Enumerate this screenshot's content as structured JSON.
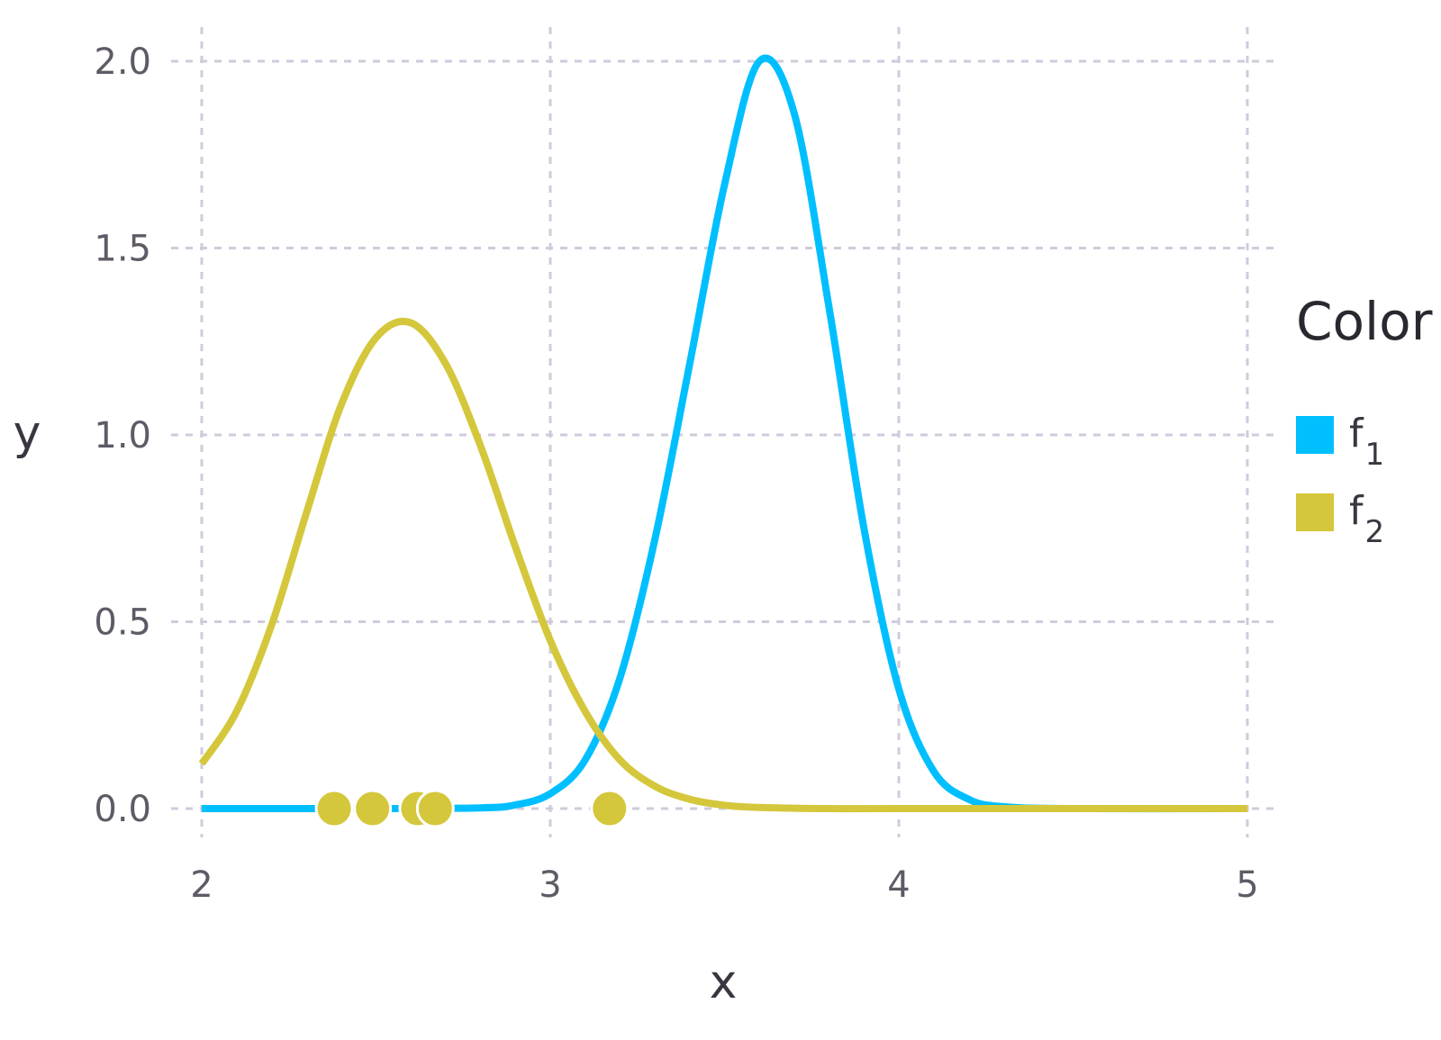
{
  "chart_data": {
    "type": "line",
    "xlabel": "x",
    "ylabel": "y",
    "xlim": [
      2,
      5
    ],
    "ylim": [
      0,
      2
    ],
    "xticks": [
      "2",
      "3",
      "4",
      "5"
    ],
    "yticks": [
      "0.0",
      "0.5",
      "1.0",
      "1.5",
      "2.0"
    ],
    "grid": true,
    "legend": {
      "title": "Color",
      "placement": "right",
      "entries": [
        {
          "base": "f",
          "sub": "1",
          "color": "#00bfff"
        },
        {
          "base": "f",
          "sub": "2",
          "color": "#d4c73b"
        }
      ]
    },
    "series": [
      {
        "type": "line",
        "color": "#00bfff",
        "points": [
          [
            2.0,
            0.0
          ],
          [
            2.5,
            0.0
          ],
          [
            2.8,
            0.002
          ],
          [
            2.9,
            0.01
          ],
          [
            3.0,
            0.04
          ],
          [
            3.1,
            0.13
          ],
          [
            3.2,
            0.35
          ],
          [
            3.3,
            0.72
          ],
          [
            3.4,
            1.19
          ],
          [
            3.5,
            1.67
          ],
          [
            3.6,
            2.0
          ],
          [
            3.7,
            1.86
          ],
          [
            3.8,
            1.34
          ],
          [
            3.9,
            0.75
          ],
          [
            4.0,
            0.32
          ],
          [
            4.1,
            0.1
          ],
          [
            4.2,
            0.025
          ],
          [
            4.3,
            0.005
          ],
          [
            4.5,
            0.0
          ],
          [
            5.0,
            0.0
          ]
        ]
      },
      {
        "type": "line",
        "color": "#d4c73b",
        "points": [
          [
            2.0,
            0.12
          ],
          [
            2.1,
            0.26
          ],
          [
            2.2,
            0.49
          ],
          [
            2.3,
            0.79
          ],
          [
            2.4,
            1.08
          ],
          [
            2.5,
            1.26
          ],
          [
            2.6,
            1.3
          ],
          [
            2.7,
            1.19
          ],
          [
            2.8,
            0.97
          ],
          [
            2.9,
            0.7
          ],
          [
            3.0,
            0.45
          ],
          [
            3.1,
            0.26
          ],
          [
            3.2,
            0.13
          ],
          [
            3.3,
            0.06
          ],
          [
            3.4,
            0.025
          ],
          [
            3.5,
            0.009
          ],
          [
            3.6,
            0.003
          ],
          [
            3.8,
            0.0
          ],
          [
            4.0,
            0.0
          ],
          [
            5.0,
            0.0
          ]
        ]
      },
      {
        "type": "scatter",
        "color": "#d4c73b",
        "points": [
          [
            2.38,
            0.0
          ],
          [
            2.49,
            0.0
          ],
          [
            2.62,
            0.0
          ],
          [
            2.67,
            0.0
          ],
          [
            3.17,
            0.0
          ]
        ]
      }
    ]
  }
}
